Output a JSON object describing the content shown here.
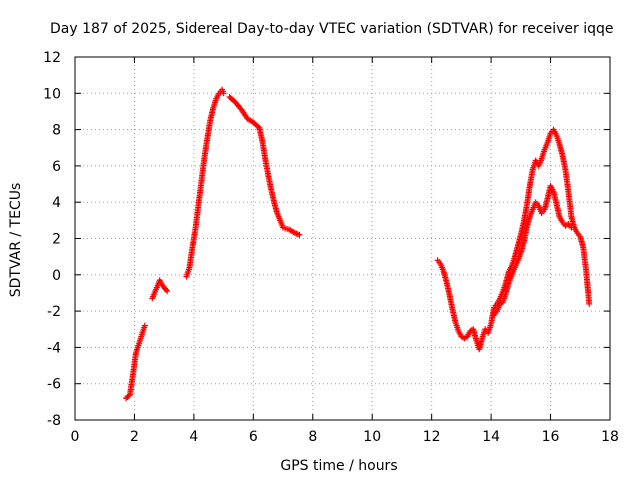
{
  "chart_data": {
    "type": "scatter",
    "title": "Day 187 of 2025, Sidereal Day-to-day VTEC variation (SDTVAR) for receiver iqqe",
    "xlabel": "GPS time / hours",
    "ylabel": "SDTVAR / TECUs",
    "xlim": [
      0,
      18
    ],
    "ylim": [
      -8,
      12
    ],
    "xticks": [
      0,
      2,
      4,
      6,
      8,
      10,
      12,
      14,
      16,
      18
    ],
    "yticks": [
      -8,
      -6,
      -4,
      -2,
      0,
      2,
      4,
      6,
      8,
      10,
      12
    ],
    "grid": true,
    "legend": "none",
    "marker": "plus",
    "color": "#ff0000",
    "series": [
      {
        "name": "segment-1",
        "x": [
          1.72,
          1.85,
          1.95,
          2.05,
          2.15,
          2.25,
          2.35
        ],
        "y": [
          -6.8,
          -6.6,
          -5.5,
          -4.3,
          -3.8,
          -3.3,
          -2.8
        ]
      },
      {
        "name": "segment-2",
        "x": [
          2.6,
          2.7,
          2.78,
          2.85,
          2.95,
          3.1
        ],
        "y": [
          -1.3,
          -0.9,
          -0.6,
          -0.3,
          -0.6,
          -0.9
        ]
      },
      {
        "name": "segment-3",
        "x": [
          3.75,
          3.85,
          3.95,
          4.05,
          4.15,
          4.25,
          4.35,
          4.45,
          4.55,
          4.65,
          4.75,
          4.85,
          4.95,
          5.0
        ],
        "y": [
          -0.1,
          0.4,
          1.5,
          2.5,
          3.8,
          5.1,
          6.4,
          7.5,
          8.5,
          9.2,
          9.7,
          10.0,
          10.2,
          10.0
        ]
      },
      {
        "name": "segment-4",
        "x": [
          5.2,
          5.4,
          5.6,
          5.8,
          6.0,
          6.2,
          6.3,
          6.4,
          6.5,
          6.6,
          6.7,
          6.8,
          6.9,
          7.0,
          7.2,
          7.4,
          7.55
        ],
        "y": [
          9.8,
          9.5,
          9.1,
          8.6,
          8.4,
          8.1,
          7.4,
          6.4,
          5.5,
          4.7,
          4.0,
          3.4,
          3.0,
          2.6,
          2.5,
          2.3,
          2.2
        ]
      },
      {
        "name": "segment-5",
        "x": [
          12.2,
          12.3,
          12.4,
          12.5,
          12.6,
          12.7,
          12.8,
          12.9,
          13.0,
          13.1,
          13.2,
          13.3,
          13.4,
          13.5,
          13.6,
          13.7,
          13.8,
          13.9,
          14.0,
          14.1,
          14.2,
          14.3,
          14.4,
          14.5,
          14.6,
          14.7,
          14.8,
          14.9,
          15.0,
          15.1,
          15.2,
          15.3,
          15.4,
          15.5,
          15.6,
          15.7,
          15.8,
          15.9,
          16.0,
          16.1,
          16.2,
          16.3,
          16.4,
          16.5,
          16.6,
          16.7,
          16.8,
          16.9,
          17.0,
          17.1,
          17.2,
          17.3
        ],
        "y": [
          0.8,
          0.6,
          0.2,
          -0.4,
          -1.1,
          -1.9,
          -2.6,
          -3.1,
          -3.4,
          -3.5,
          -3.4,
          -3.1,
          -3.0,
          -3.6,
          -4.1,
          -3.5,
          -3.0,
          -3.2,
          -2.7,
          -1.8,
          -1.6,
          -1.3,
          -0.9,
          -0.4,
          0.2,
          0.5,
          1.0,
          1.6,
          2.2,
          2.9,
          3.8,
          4.9,
          5.8,
          6.3,
          6.0,
          6.4,
          6.9,
          7.3,
          7.8,
          8.0,
          7.7,
          7.2,
          6.6,
          5.8,
          4.6,
          3.2,
          2.6,
          2.3,
          2.1,
          1.5,
          0.2,
          -1.6
        ]
      },
      {
        "name": "segment-6",
        "x": [
          14.1,
          14.2,
          14.3,
          14.4,
          14.5,
          14.6,
          14.7,
          14.8,
          14.9,
          15.0,
          15.1,
          15.2,
          15.3,
          15.4,
          15.5,
          15.6,
          15.7,
          15.8,
          15.9,
          16.0,
          16.1,
          16.2,
          16.3,
          16.4,
          16.5,
          16.6,
          16.7
        ],
        "y": [
          -2.2,
          -2.0,
          -1.6,
          -1.5,
          -1.0,
          -0.4,
          0.0,
          0.4,
          0.8,
          1.2,
          1.8,
          2.6,
          3.2,
          3.6,
          4.0,
          3.8,
          3.4,
          3.6,
          4.2,
          4.9,
          4.6,
          3.9,
          3.2,
          2.9,
          2.7,
          2.8,
          2.6
        ]
      }
    ]
  }
}
